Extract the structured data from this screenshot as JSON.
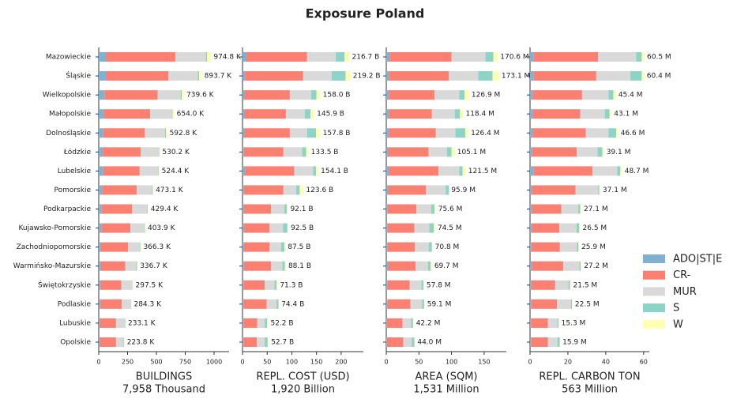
{
  "chart_data": {
    "type": "bar",
    "orientation": "horizontal",
    "stacked": true,
    "title": "Exposure Poland",
    "categories": [
      "Mazowieckie",
      "Śląskie",
      "Wielkopolskie",
      "Małopolskie",
      "Dolnośląskie",
      "Łódzkie",
      "Lubelskie",
      "Pomorskie",
      "Podkarpackie",
      "Kujawsko-Pomorskie",
      "Zachodniopomorskie",
      "Warmińsko-Mazurskie",
      "Świętokrzyskie",
      "Podlaskie",
      "Lubuskie",
      "Opolskie"
    ],
    "series": [
      {
        "name": "ADO|ST|E",
        "color": "#80b1d3"
      },
      {
        "name": "CR-",
        "color": "#fb8072"
      },
      {
        "name": "MUR",
        "color": "#d9d9d9"
      },
      {
        "name": "S",
        "color": "#8dd3c7"
      },
      {
        "name": "W",
        "color": "#ffffb3"
      }
    ],
    "panels": [
      {
        "xlabel": "BUILDINGS",
        "subtitle": "7,958 Thousand",
        "xlim": [
          0,
          1130
        ],
        "xticks": [
          0,
          250,
          500,
          750,
          1000
        ],
        "values": [
          [
            65,
            65,
            50,
            45,
            40,
            35,
            40,
            30,
            25,
            25,
            20,
            20,
            15,
            15,
            10,
            10
          ],
          [
            600,
            540,
            460,
            400,
            360,
            330,
            315,
            300,
            265,
            250,
            235,
            210,
            180,
            185,
            140,
            140
          ],
          [
            265,
            255,
            200,
            190,
            175,
            155,
            160,
            130,
            130,
            120,
            100,
            95,
            95,
            80,
            75,
            65
          ],
          [
            10,
            10,
            10,
            5,
            8,
            5,
            5,
            8,
            5,
            5,
            6,
            7,
            3,
            2,
            5,
            5
          ],
          [
            35,
            25,
            20,
            15,
            10,
            5,
            5,
            5,
            5,
            4,
            5,
            5,
            5,
            2,
            3,
            4
          ]
        ],
        "total_labels": [
          "974.8 K",
          "893.7 K",
          "739.6 K",
          "654.0 K",
          "592.8 K",
          "530.2 K",
          "524.4 K",
          "473.1 K",
          "429.4 K",
          "403.9 K",
          "366.3 K",
          "336.7 K",
          "297.5 K",
          "284.3 K",
          "233.1 K",
          "223.8 K"
        ]
      },
      {
        "xlabel": "REPL. COST (USD)",
        "subtitle": "1,920 Billion",
        "xlim": [
          0,
          245
        ],
        "xticks": [
          0,
          50,
          100,
          150,
          200
        ],
        "values": [
          [
            8,
            5,
            4,
            4,
            4,
            3,
            5,
            3,
            3,
            3,
            3,
            3,
            2,
            2,
            2,
            2
          ],
          [
            123,
            118,
            92,
            84,
            92,
            80,
            100,
            80,
            55,
            52,
            52,
            55,
            43,
            47,
            28,
            27
          ],
          [
            58,
            58,
            43,
            38,
            35,
            38,
            38,
            26,
            27,
            27,
            23,
            23,
            20,
            20,
            15,
            16
          ],
          [
            18,
            28,
            11,
            12,
            18,
            8,
            6,
            7,
            5,
            9,
            7,
            5,
            4,
            4,
            5,
            6
          ],
          [
            10,
            10,
            8,
            8,
            9,
            5,
            5,
            8,
            2,
            2,
            2,
            2,
            2,
            1,
            2,
            2
          ]
        ],
        "total_labels": [
          "216.7 B",
          "219.2 B",
          "158.0 B",
          "145.9 B",
          "157.8 B",
          "133.5 B",
          "154.1 B",
          "123.6 B",
          "92.1 B",
          "92.5 B",
          "87.5 B",
          "88.1 B",
          "71.3 B",
          "74.4 B",
          "52.2 B",
          "52.7 B"
        ]
      },
      {
        "xlabel": "AREA (SQM)",
        "subtitle": "1,531 Million",
        "xlim": [
          0,
          184
        ],
        "xticks": [
          0,
          50,
          100,
          150
        ],
        "values": [
          [
            5,
            4,
            4,
            4,
            4,
            3,
            4,
            3,
            2,
            2,
            2,
            3,
            2,
            2,
            1,
            1
          ],
          [
            95,
            92,
            70,
            66,
            72,
            62,
            76,
            58,
            44,
            41,
            42,
            42,
            34,
            35,
            24,
            25
          ],
          [
            52,
            45,
            38,
            35,
            30,
            28,
            32,
            30,
            23,
            23,
            21,
            19,
            18,
            18,
            13,
            13
          ],
          [
            12,
            22,
            8,
            8,
            15,
            7,
            5,
            5,
            5,
            7,
            5,
            4,
            3,
            3,
            3,
            4
          ],
          [
            7,
            10,
            7,
            5,
            5,
            5,
            5,
            0,
            2,
            2,
            1,
            2,
            1,
            1,
            1,
            1
          ]
        ],
        "total_labels": [
          "170.6 M",
          "173.1 M",
          "126.9 M",
          "118.4 M",
          "126.4 M",
          "105.1 M",
          "121.5 M",
          "95.9 M",
          "75.6 M",
          "74.5 M",
          "70.8 M",
          "69.7 M",
          "57.8 M",
          "59.1 M",
          "42.2 M",
          "44.0 M"
        ]
      },
      {
        "xlabel": "REPL. CARBON TON",
        "subtitle": "563 Million",
        "xlim": [
          0,
          63
        ],
        "xticks": [
          0,
          20,
          40,
          60
        ],
        "values": [
          [
            2,
            2,
            1.5,
            1.5,
            1.5,
            1.2,
            2,
            1,
            1,
            1,
            0.8,
            1,
            0.8,
            0.7,
            0.5,
            0.5
          ],
          [
            34,
            33,
            26,
            25,
            28,
            23.5,
            31,
            23,
            15.5,
            14.5,
            15,
            16.5,
            12.5,
            13.5,
            9,
            9
          ],
          [
            20,
            18,
            14,
            13,
            12,
            11,
            13,
            12,
            9,
            9,
            9,
            8.6,
            7,
            7.5,
            5,
            5
          ],
          [
            3,
            6,
            2.5,
            2.5,
            4,
            2.5,
            1.7,
            0.6,
            1,
            1.5,
            0.8,
            0.6,
            0.8,
            0.5,
            0.6,
            1.2
          ],
          [
            1.5,
            1.4,
            1.4,
            1.1,
            1.1,
            0.9,
            1,
            0.5,
            0.6,
            0.5,
            0.3,
            0.5,
            0.4,
            0.3,
            0.2,
            0.2
          ]
        ],
        "total_labels": [
          "60.5 M",
          "60.4 M",
          "45.4 M",
          "43.1 M",
          "46.6 M",
          "39.1 M",
          "48.7 M",
          "37.1 M",
          "27.1 M",
          "26.5 M",
          "25.9 M",
          "27.2 M",
          "21.5 M",
          "22.5 M",
          "15.3 M",
          "15.9 M"
        ]
      }
    ]
  }
}
